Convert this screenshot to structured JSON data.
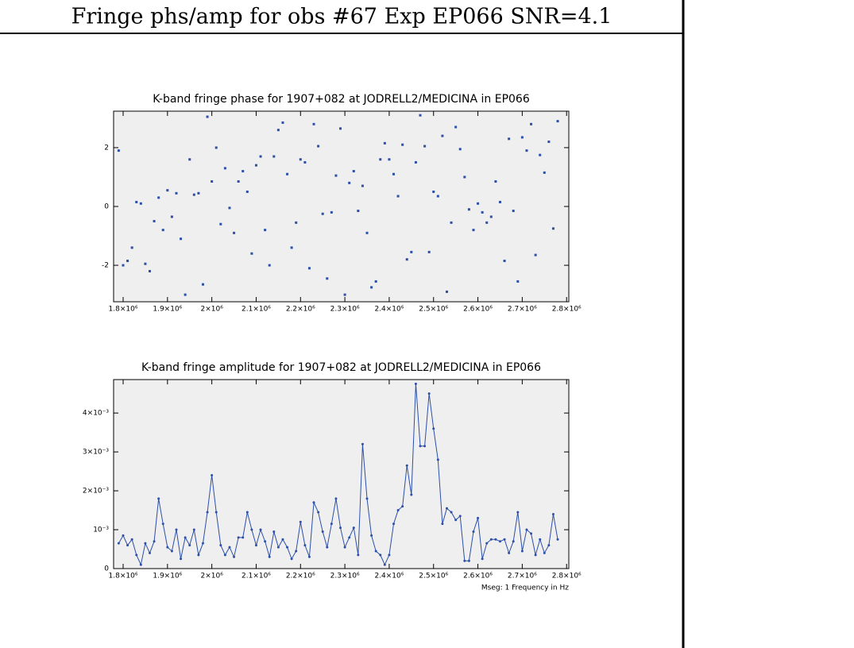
{
  "title": "Fringe phs/amp for obs #67 Exp EP066 SNR=4.1",
  "chart_data": [
    {
      "type": "scatter",
      "title": "K-band fringe phase for 1907+082 at JODRELL2/MEDICINA in EP066",
      "color": "#2c4fa8",
      "x": [
        1790000,
        1800000,
        1810000,
        1820000,
        1830000,
        1840000,
        1850000,
        1860000,
        1870000,
        1880000,
        1890000,
        1900000,
        1910000,
        1920000,
        1930000,
        1940000,
        1950000,
        1960000,
        1970000,
        1980000,
        1990000,
        2000000,
        2010000,
        2020000,
        2030000,
        2040000,
        2050000,
        2060000,
        2070000,
        2080000,
        2090000,
        2100000,
        2110000,
        2120000,
        2130000,
        2140000,
        2150000,
        2160000,
        2170000,
        2180000,
        2190000,
        2200000,
        2210000,
        2220000,
        2230000,
        2240000,
        2250000,
        2260000,
        2270000,
        2280000,
        2290000,
        2300000,
        2310000,
        2320000,
        2330000,
        2340000,
        2350000,
        2360000,
        2370000,
        2380000,
        2390000,
        2400000,
        2410000,
        2420000,
        2430000,
        2440000,
        2450000,
        2460000,
        2470000,
        2480000,
        2490000,
        2500000,
        2510000,
        2520000,
        2530000,
        2540000,
        2550000,
        2560000,
        2570000,
        2580000,
        2590000,
        2600000,
        2610000,
        2620000,
        2630000,
        2640000,
        2650000,
        2660000,
        2670000,
        2680000,
        2690000,
        2700000,
        2710000,
        2720000,
        2730000,
        2740000,
        2750000,
        2760000,
        2770000,
        2780000
      ],
      "values": [
        1.9,
        -2.0,
        -1.85,
        -1.4,
        0.15,
        0.1,
        -1.95,
        -2.2,
        -0.5,
        0.3,
        -0.8,
        0.55,
        -0.35,
        0.45,
        -1.1,
        -3.0,
        1.6,
        0.4,
        0.45,
        -2.65,
        3.05,
        0.85,
        2.0,
        -0.6,
        1.3,
        -0.05,
        -0.9,
        0.85,
        1.2,
        0.5,
        -1.6,
        1.4,
        1.7,
        -0.8,
        -2.0,
        1.7,
        2.6,
        2.85,
        1.1,
        -1.4,
        -0.55,
        1.6,
        1.5,
        -2.1,
        2.8,
        2.05,
        -0.25,
        -2.45,
        -0.2,
        1.05,
        2.65,
        -3.0,
        0.8,
        1.2,
        -0.15,
        0.7,
        -0.9,
        -2.75,
        -2.55,
        1.6,
        2.15,
        1.6,
        1.1,
        0.35,
        2.1,
        -1.8,
        -1.55,
        1.5,
        3.1,
        2.05,
        -1.55,
        0.5,
        0.35,
        2.4,
        -2.9,
        -0.55,
        2.7,
        1.95,
        1.0,
        -0.1,
        -0.8,
        0.1,
        -0.2,
        -0.55,
        -0.35,
        0.85,
        0.15,
        -1.85,
        2.3,
        -0.15,
        -2.55,
        2.35,
        1.9,
        2.8,
        -1.65,
        1.75,
        1.15,
        2.2,
        -0.75,
        2.9
      ],
      "xlim": [
        1778500,
        2805000
      ],
      "ylim": [
        -3.24,
        3.24
      ],
      "xticks": [
        {
          "value": 1800000,
          "label": "1.8×10⁶"
        },
        {
          "value": 1900000,
          "label": "1.9×10⁶"
        },
        {
          "value": 2000000,
          "label": "2×10⁶"
        },
        {
          "value": 2100000,
          "label": "2.1×10⁶"
        },
        {
          "value": 2200000,
          "label": "2.2×10⁶"
        },
        {
          "value": 2300000,
          "label": "2.3×10⁶"
        },
        {
          "value": 2400000,
          "label": "2.4×10⁶"
        },
        {
          "value": 2500000,
          "label": "2.5×10⁶"
        },
        {
          "value": 2600000,
          "label": "2.6×10⁶"
        },
        {
          "value": 2700000,
          "label": "2.7×10⁶"
        },
        {
          "value": 2800000,
          "label": "2.8×10⁶"
        }
      ],
      "yticks": [
        -2,
        0,
        2
      ]
    },
    {
      "type": "line",
      "title": "K-band fringe amplitude for 1907+082 at JODRELL2/MEDICINA in EP066",
      "xlabel": "Mseg: 1 Frequency in Hz",
      "color": "#2c4fa8",
      "x": [
        1790000,
        1800000,
        1810000,
        1820000,
        1830000,
        1840000,
        1850000,
        1860000,
        1870000,
        1880000,
        1890000,
        1900000,
        1910000,
        1920000,
        1930000,
        1940000,
        1950000,
        1960000,
        1970000,
        1980000,
        1990000,
        2000000,
        2010000,
        2020000,
        2030000,
        2040000,
        2050000,
        2060000,
        2070000,
        2080000,
        2090000,
        2100000,
        2110000,
        2120000,
        2130000,
        2140000,
        2150000,
        2160000,
        2170000,
        2180000,
        2190000,
        2200000,
        2210000,
        2220000,
        2230000,
        2240000,
        2250000,
        2260000,
        2270000,
        2280000,
        2290000,
        2300000,
        2310000,
        2320000,
        2330000,
        2340000,
        2350000,
        2360000,
        2370000,
        2380000,
        2390000,
        2400000,
        2410000,
        2420000,
        2430000,
        2440000,
        2450000,
        2460000,
        2470000,
        2480000,
        2490000,
        2500000,
        2510000,
        2520000,
        2530000,
        2540000,
        2550000,
        2560000,
        2570000,
        2580000,
        2590000,
        2600000,
        2610000,
        2620000,
        2630000,
        2640000,
        2650000,
        2660000,
        2670000,
        2680000,
        2690000,
        2700000,
        2710000,
        2720000,
        2730000,
        2740000,
        2750000,
        2760000,
        2770000,
        2780000
      ],
      "values": [
        0.00065,
        0.00085,
        0.0006,
        0.00075,
        0.00035,
        0.0001,
        0.00065,
        0.0004,
        0.0007,
        0.0018,
        0.00115,
        0.00055,
        0.00045,
        0.001,
        0.00025,
        0.0008,
        0.0006,
        0.001,
        0.00035,
        0.00065,
        0.00145,
        0.0024,
        0.00145,
        0.0006,
        0.00035,
        0.00055,
        0.0003,
        0.0008,
        0.0008,
        0.00145,
        0.001,
        0.0006,
        0.001,
        0.0007,
        0.0003,
        0.00095,
        0.00055,
        0.00075,
        0.00055,
        0.00025,
        0.00045,
        0.0012,
        0.0006,
        0.0003,
        0.0017,
        0.00145,
        0.00095,
        0.00055,
        0.00115,
        0.0018,
        0.00105,
        0.00055,
        0.0008,
        0.00105,
        0.00035,
        0.0032,
        0.0018,
        0.00085,
        0.00045,
        0.00035,
        0.0001,
        0.00035,
        0.00115,
        0.0015,
        0.0016,
        0.00265,
        0.0019,
        0.00475,
        0.00315,
        0.00315,
        0.0045,
        0.0036,
        0.0028,
        0.00115,
        0.00155,
        0.00145,
        0.00125,
        0.00135,
        0.0002,
        0.0002,
        0.00095,
        0.0013,
        0.00025,
        0.00065,
        0.00075,
        0.00075,
        0.0007,
        0.00075,
        0.0004,
        0.0007,
        0.00145,
        0.00045,
        0.001,
        0.0009,
        0.00035,
        0.00075,
        0.0004,
        0.0006,
        0.0014,
        0.00075
      ],
      "xlim": [
        1778500,
        2805000
      ],
      "ylim": [
        0,
        0.00486
      ],
      "xticks": [
        {
          "value": 1800000,
          "label": "1.8×10⁶"
        },
        {
          "value": 1900000,
          "label": "1.9×10⁶"
        },
        {
          "value": 2000000,
          "label": "2×10⁶"
        },
        {
          "value": 2100000,
          "label": "2.1×10⁶"
        },
        {
          "value": 2200000,
          "label": "2.2×10⁶"
        },
        {
          "value": 2300000,
          "label": "2.3×10⁶"
        },
        {
          "value": 2400000,
          "label": "2.4×10⁶"
        },
        {
          "value": 2500000,
          "label": "2.5×10⁶"
        },
        {
          "value": 2600000,
          "label": "2.6×10⁶"
        },
        {
          "value": 2700000,
          "label": "2.7×10⁶"
        },
        {
          "value": 2800000,
          "label": "2.8×10⁶"
        }
      ],
      "yticks": [
        0,
        {
          "value": 0.001,
          "label": "10⁻³"
        },
        {
          "value": 0.002,
          "label": "2×10⁻³"
        },
        {
          "value": 0.003,
          "label": "3×10⁻³"
        },
        {
          "value": 0.004,
          "label": "4×10⁻³"
        }
      ]
    }
  ]
}
